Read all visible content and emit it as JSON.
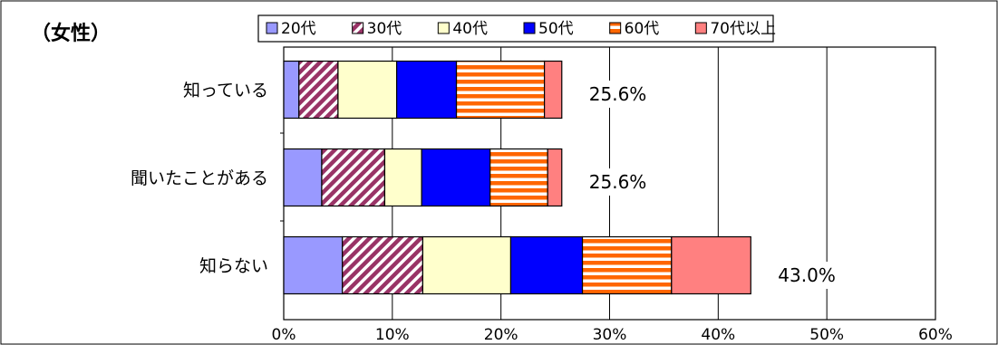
{
  "chart_data": {
    "type": "bar",
    "orientation": "horizontal",
    "stacked": true,
    "title": "（女性）",
    "categories": [
      "知っている",
      "聞いたことがある",
      "知らない"
    ],
    "series": [
      {
        "name": "20代",
        "values": [
          1.4,
          3.5,
          5.4
        ],
        "color": "#9999ff",
        "pattern": "solid"
      },
      {
        "name": "30代",
        "values": [
          3.6,
          5.8,
          7.4
        ],
        "color": "#993366",
        "pattern": "diagonal"
      },
      {
        "name": "40代",
        "values": [
          5.4,
          3.4,
          8.1
        ],
        "color": "#ffffcc",
        "pattern": "solid"
      },
      {
        "name": "50代",
        "values": [
          5.5,
          6.3,
          6.6
        ],
        "color": "#0000ff",
        "pattern": "solid"
      },
      {
        "name": "60代",
        "values": [
          8.1,
          5.3,
          8.2
        ],
        "color": "#ff6600",
        "pattern": "horizontal"
      },
      {
        "name": "70代以上",
        "values": [
          1.6,
          1.3,
          7.3
        ],
        "color": "#ff8080",
        "pattern": "solid"
      }
    ],
    "totals_labels": [
      "25.6%",
      "25.6%",
      "43.0%"
    ],
    "xlim": [
      0,
      60
    ],
    "xticks": [
      "0%",
      "10%",
      "20%",
      "30%",
      "40%",
      "50%",
      "60%"
    ],
    "grid": true,
    "legend_position": "top"
  }
}
